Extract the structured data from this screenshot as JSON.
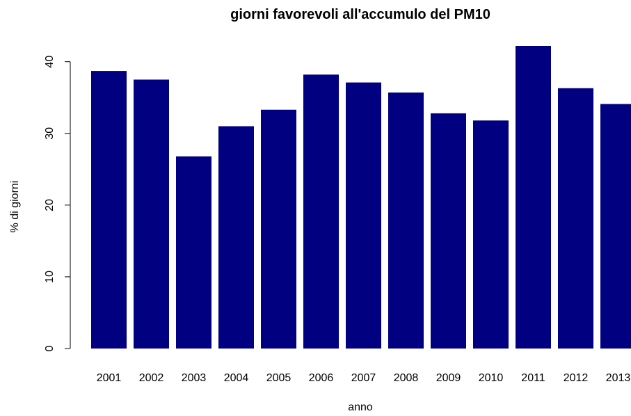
{
  "chart_data": {
    "type": "bar",
    "title": "giorni favorevoli all'accumulo del PM10",
    "xlabel": "anno",
    "ylabel": "% di giorni",
    "categories": [
      "2001",
      "2002",
      "2003",
      "2004",
      "2005",
      "2006",
      "2007",
      "2008",
      "2009",
      "2010",
      "2011",
      "2012",
      "2013"
    ],
    "values": [
      38.7,
      37.5,
      26.8,
      31.0,
      33.3,
      38.2,
      37.1,
      35.7,
      32.8,
      31.8,
      42.2,
      36.3,
      34.1
    ],
    "ylim": [
      0,
      42.2
    ],
    "yticks": [
      "0",
      "10",
      "20",
      "30",
      "40"
    ],
    "bar_color": "#000080",
    "grid": false,
    "legend": "none"
  }
}
